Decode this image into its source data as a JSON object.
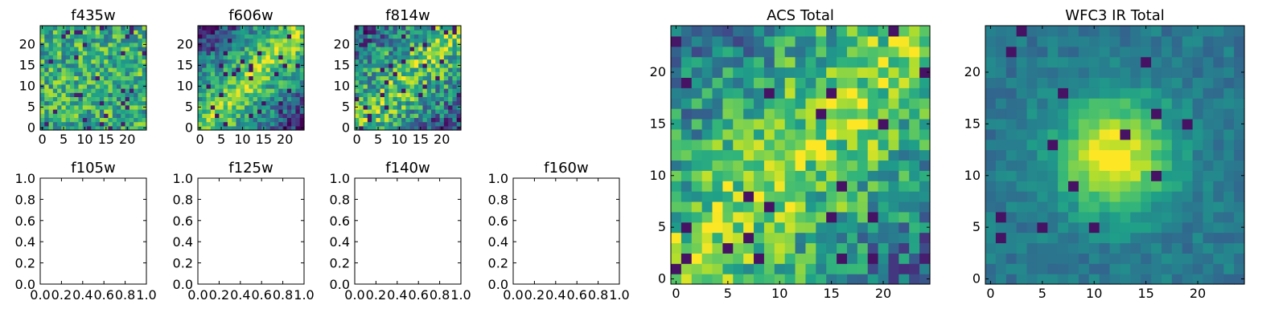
{
  "chart_data": [
    {
      "type": "heatmap",
      "title": "f435w",
      "panel": "small-image",
      "size": 25,
      "seed": 11,
      "xticks": [
        "0",
        "5",
        "10",
        "15",
        "20"
      ],
      "yticks": [
        "0",
        "5",
        "10",
        "15",
        "20"
      ],
      "colormap": "viridis"
    },
    {
      "type": "heatmap",
      "title": "f606w",
      "panel": "small-image",
      "size": 25,
      "seed": 23,
      "xticks": [
        "0",
        "5",
        "10",
        "15",
        "20"
      ],
      "yticks": [
        "0",
        "5",
        "10",
        "15",
        "20"
      ],
      "colormap": "viridis"
    },
    {
      "type": "heatmap",
      "title": "f814w",
      "panel": "small-image",
      "size": 25,
      "seed": 37,
      "xticks": [
        "0",
        "5",
        "10",
        "15",
        "20"
      ],
      "yticks": [
        "0",
        "5",
        "10",
        "15",
        "20"
      ],
      "colormap": "viridis"
    },
    {
      "type": "line",
      "title": "f105w",
      "panel": "empty",
      "xlim": [
        0,
        1
      ],
      "ylim": [
        0,
        1
      ],
      "xticks": [
        "0.0",
        "0.2",
        "0.4",
        "0.6",
        "0.8",
        "1.0"
      ],
      "yticks": [
        "0.0",
        "0.2",
        "0.4",
        "0.6",
        "0.8",
        "1.0"
      ]
    },
    {
      "type": "line",
      "title": "f125w",
      "panel": "empty",
      "xlim": [
        0,
        1
      ],
      "ylim": [
        0,
        1
      ],
      "xticks": [
        "0.0",
        "0.2",
        "0.4",
        "0.6",
        "0.8",
        "1.0"
      ],
      "yticks": [
        "0.0",
        "0.2",
        "0.4",
        "0.6",
        "0.8",
        "1.0"
      ]
    },
    {
      "type": "line",
      "title": "f140w",
      "panel": "empty",
      "xlim": [
        0,
        1
      ],
      "ylim": [
        0,
        1
      ],
      "xticks": [
        "0.0",
        "0.2",
        "0.4",
        "0.6",
        "0.8",
        "1.0"
      ],
      "yticks": [
        "0.0",
        "0.2",
        "0.4",
        "0.6",
        "0.8",
        "1.0"
      ]
    },
    {
      "type": "line",
      "title": "f160w",
      "panel": "empty",
      "xlim": [
        0,
        1
      ],
      "ylim": [
        0,
        1
      ],
      "xticks": [
        "0.0",
        "0.2",
        "0.4",
        "0.6",
        "0.8",
        "1.0"
      ],
      "yticks": [
        "0.0",
        "0.2",
        "0.4",
        "0.6",
        "0.8",
        "1.0"
      ]
    },
    {
      "type": "heatmap",
      "title": "ACS Total",
      "panel": "large-image",
      "size": 25,
      "seed": 51,
      "xticks": [
        "0",
        "5",
        "10",
        "15",
        "20"
      ],
      "yticks": [
        "0",
        "5",
        "10",
        "15",
        "20"
      ],
      "colormap": "viridis"
    },
    {
      "type": "heatmap",
      "title": "WFC3 IR Total",
      "panel": "large-image",
      "size": 25,
      "seed": 73,
      "xticks": [
        "0",
        "5",
        "10",
        "15",
        "20"
      ],
      "yticks": [
        "0",
        "5",
        "10",
        "15",
        "20"
      ],
      "colormap": "viridis"
    }
  ]
}
